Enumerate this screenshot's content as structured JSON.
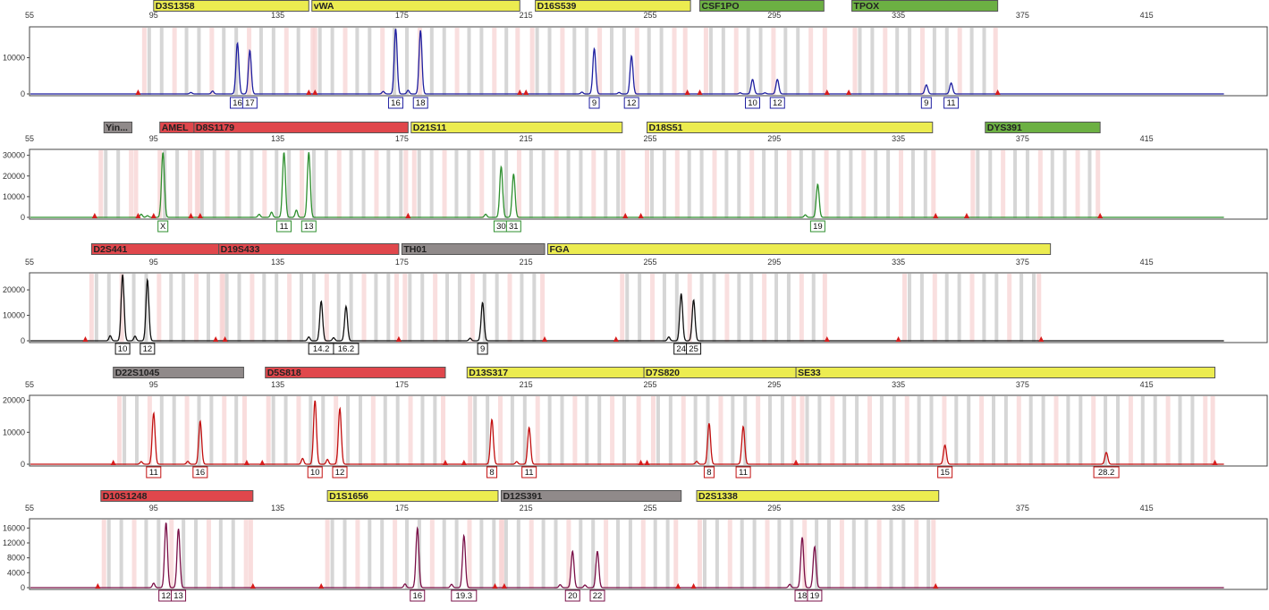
{
  "colors": {
    "yellow_marker": "#ecec50",
    "green_marker": "#6cb043",
    "red_marker": "#e0474c",
    "gray_marker": "#908a8a",
    "bin_gray": "#c8c8c8",
    "bin_pink": "#f7d4d4",
    "blue_dye": "#1f1fa0",
    "green_dye": "#2f8f2f",
    "black_dye": "#111111",
    "red_dye": "#c21010",
    "purple_dye": "#7a1048",
    "stutter_marker": "#d81c1c"
  },
  "chart_data": [
    {
      "type": "line",
      "panel": "blue",
      "x_ticks": [
        55,
        95,
        135,
        175,
        215,
        255,
        295,
        335,
        375,
        415
      ],
      "xlim": [
        55,
        440
      ],
      "ylim": [
        0,
        18000
      ],
      "y_ticks": [
        0,
        10000
      ],
      "y_tick_labels": [
        "0",
        "10000"
      ],
      "line_color": "blue_dye",
      "markers": [
        {
          "name": "D3S1358",
          "start": 95,
          "end": 145,
          "color": "yellow_marker"
        },
        {
          "name": "vWA",
          "start": 146,
          "end": 213,
          "color": "yellow_marker"
        },
        {
          "name": "D16S539",
          "start": 218,
          "end": 268,
          "color": "yellow_marker"
        },
        {
          "name": "CSF1PO",
          "start": 271,
          "end": 311,
          "color": "green_marker"
        },
        {
          "name": "TPOX",
          "start": 320,
          "end": 367,
          "color": "green_marker"
        }
      ],
      "bins": [
        [
          93,
          145
        ],
        [
          148,
          211
        ],
        [
          218,
          265
        ],
        [
          274,
          310
        ],
        [
          322,
          365
        ]
      ],
      "peaks": [
        {
          "x": 122,
          "height": 14000,
          "allele": "16"
        },
        {
          "x": 126,
          "height": 12000,
          "allele": "17"
        },
        {
          "x": 173,
          "height": 18000,
          "allele": "16"
        },
        {
          "x": 181,
          "height": 17500,
          "allele": "18"
        },
        {
          "x": 237,
          "height": 12500,
          "allele": "9"
        },
        {
          "x": 249,
          "height": 10500,
          "allele": "12"
        },
        {
          "x": 288,
          "height": 4000,
          "allele": "10"
        },
        {
          "x": 296,
          "height": 4000,
          "allele": "12"
        },
        {
          "x": 344,
          "height": 2500,
          "allele": "9"
        },
        {
          "x": 352,
          "height": 3000,
          "allele": "11"
        }
      ],
      "stutter": [
        {
          "x": 107,
          "height": 400
        },
        {
          "x": 114,
          "height": 800
        },
        {
          "x": 169,
          "height": 700
        },
        {
          "x": 177,
          "height": 1000
        },
        {
          "x": 233,
          "height": 500
        },
        {
          "x": 245,
          "height": 400
        },
        {
          "x": 284,
          "height": 300
        },
        {
          "x": 292,
          "height": 300
        }
      ]
    },
    {
      "type": "line",
      "panel": "green",
      "x_ticks": [
        55,
        95,
        135,
        175,
        215,
        255,
        295,
        335,
        375,
        415
      ],
      "xlim": [
        55,
        440
      ],
      "ylim": [
        0,
        32000
      ],
      "y_ticks": [
        0,
        10000,
        20000,
        30000
      ],
      "y_tick_labels": [
        "0",
        "10000",
        "20000",
        "30000"
      ],
      "line_color": "green_dye",
      "markers": [
        {
          "name": "Yin...",
          "start": 79,
          "end": 88,
          "color": "gray_marker"
        },
        {
          "name": "AMEL",
          "start": 97,
          "end": 108,
          "color": "red_marker"
        },
        {
          "name": "D8S1179",
          "start": 108,
          "end": 177,
          "color": "red_marker"
        },
        {
          "name": "D21S11",
          "start": 178,
          "end": 246,
          "color": "yellow_marker"
        },
        {
          "name": "D18S51",
          "start": 254,
          "end": 346,
          "color": "yellow_marker"
        },
        {
          "name": "DYS391",
          "start": 363,
          "end": 400,
          "color": "green_marker"
        }
      ],
      "bins": [
        [
          79,
          88
        ],
        [
          98,
          108
        ],
        [
          110,
          175
        ],
        [
          180,
          245
        ],
        [
          255,
          345
        ],
        [
          360,
          398
        ]
      ],
      "peaks": [
        {
          "x": 98,
          "height": 31500,
          "allele": "X"
        },
        {
          "x": 137,
          "height": 31500,
          "allele": "11"
        },
        {
          "x": 145,
          "height": 31500,
          "allele": "13"
        },
        {
          "x": 207,
          "height": 24500,
          "allele": "30"
        },
        {
          "x": 211,
          "height": 21000,
          "allele": "31"
        },
        {
          "x": 309,
          "height": 16000,
          "allele": "19"
        }
      ],
      "stutter": [
        {
          "x": 91,
          "height": 1500
        },
        {
          "x": 93,
          "height": 800
        },
        {
          "x": 129,
          "height": 1500
        },
        {
          "x": 133,
          "height": 2500
        },
        {
          "x": 141,
          "height": 3500
        },
        {
          "x": 202,
          "height": 1500
        },
        {
          "x": 305,
          "height": 1200
        }
      ]
    },
    {
      "type": "line",
      "panel": "yellow",
      "x_ticks": [
        55,
        95,
        135,
        175,
        215,
        255,
        295,
        335,
        375,
        415
      ],
      "xlim": [
        55,
        440
      ],
      "ylim": [
        0,
        26000
      ],
      "y_ticks": [
        0,
        10000,
        20000
      ],
      "y_tick_labels": [
        "0",
        "10000",
        "20000"
      ],
      "line_color": "black_dye",
      "markers": [
        {
          "name": "D2S441",
          "start": 75,
          "end": 116,
          "color": "red_marker"
        },
        {
          "name": "D19S433",
          "start": 116,
          "end": 174,
          "color": "red_marker"
        },
        {
          "name": "TH01",
          "start": 175,
          "end": 221,
          "color": "gray_marker"
        },
        {
          "name": "FGA",
          "start": 222,
          "end": 384,
          "color": "yellow_marker"
        }
      ],
      "bins": [
        [
          76,
          116
        ],
        [
          118,
          172
        ],
        [
          177,
          219
        ],
        [
          247,
          310
        ],
        [
          338,
          379
        ]
      ],
      "peaks": [
        {
          "x": 85,
          "height": 26000,
          "allele": "10"
        },
        {
          "x": 93,
          "height": 24000,
          "allele": "12"
        },
        {
          "x": 149,
          "height": 15500,
          "allele": "14.2"
        },
        {
          "x": 157,
          "height": 13500,
          "allele": "16.2"
        },
        {
          "x": 201,
          "height": 15000,
          "allele": "9"
        },
        {
          "x": 265,
          "height": 18500,
          "allele": "24"
        },
        {
          "x": 269,
          "height": 16000,
          "allele": "25"
        }
      ],
      "stutter": [
        {
          "x": 81,
          "height": 2000
        },
        {
          "x": 89,
          "height": 1800
        },
        {
          "x": 145,
          "height": 1500
        },
        {
          "x": 153,
          "height": 1200
        },
        {
          "x": 197,
          "height": 1000
        },
        {
          "x": 261,
          "height": 1500
        }
      ]
    },
    {
      "type": "line",
      "panel": "red",
      "x_ticks": [
        55,
        95,
        135,
        175,
        215,
        255,
        295,
        335,
        375,
        415
      ],
      "xlim": [
        55,
        440
      ],
      "ylim": [
        0,
        21000
      ],
      "y_ticks": [
        0,
        10000,
        20000
      ],
      "y_tick_labels": [
        "0",
        "10000",
        "20000"
      ],
      "line_color": "red_dye",
      "markers": [
        {
          "name": "D22S1045",
          "start": 82,
          "end": 124,
          "color": "gray_marker"
        },
        {
          "name": "D5S818",
          "start": 131,
          "end": 189,
          "color": "red_marker"
        },
        {
          "name": "D13S317",
          "start": 196,
          "end": 253,
          "color": "yellow_marker"
        },
        {
          "name": "D7S820",
          "start": 253,
          "end": 302,
          "color": "yellow_marker"
        },
        {
          "name": "SE33",
          "start": 302,
          "end": 437,
          "color": "yellow_marker"
        }
      ],
      "bins": [
        [
          85,
          123
        ],
        [
          133,
          187
        ],
        [
          198,
          250
        ],
        [
          257,
          300
        ],
        [
          305,
          435
        ]
      ],
      "peaks": [
        {
          "x": 95,
          "height": 16000,
          "allele": "11"
        },
        {
          "x": 110,
          "height": 13500,
          "allele": "16"
        },
        {
          "x": 147,
          "height": 20000,
          "allele": "10"
        },
        {
          "x": 155,
          "height": 17500,
          "allele": "12"
        },
        {
          "x": 204,
          "height": 14000,
          "allele": "8"
        },
        {
          "x": 216,
          "height": 11500,
          "allele": "11"
        },
        {
          "x": 274,
          "height": 12800,
          "allele": "8"
        },
        {
          "x": 285,
          "height": 11800,
          "allele": "11"
        },
        {
          "x": 350,
          "height": 6000,
          "allele": "15"
        },
        {
          "x": 402,
          "height": 3700,
          "allele": "28.2"
        }
      ],
      "stutter": [
        {
          "x": 91,
          "height": 800
        },
        {
          "x": 106,
          "height": 900
        },
        {
          "x": 143,
          "height": 1800
        },
        {
          "x": 151,
          "height": 1500
        },
        {
          "x": 212,
          "height": 800
        },
        {
          "x": 270,
          "height": 900
        }
      ]
    },
    {
      "type": "line",
      "panel": "purple",
      "x_ticks": [
        55,
        95,
        135,
        175,
        215,
        255,
        295,
        335,
        375,
        415
      ],
      "xlim": [
        55,
        440
      ],
      "ylim": [
        0,
        18000
      ],
      "y_ticks": [
        0,
        4000,
        8000,
        12000,
        16000
      ],
      "y_tick_labels": [
        "0",
        "4000",
        "8000",
        "12000",
        "16000"
      ],
      "line_color": "purple_dye",
      "markers": [
        {
          "name": "D10S1248",
          "start": 78,
          "end": 127,
          "color": "red_marker"
        },
        {
          "name": "D1S1656",
          "start": 151,
          "end": 206,
          "color": "yellow_marker"
        },
        {
          "name": "D12S391",
          "start": 207,
          "end": 265,
          "color": "gray_marker"
        },
        {
          "name": "D2S1338",
          "start": 270,
          "end": 348,
          "color": "yellow_marker"
        }
      ],
      "bins": [
        [
          80,
          125
        ],
        [
          152,
          206
        ],
        [
          208,
          262
        ],
        [
          272,
          345
        ]
      ],
      "peaks": [
        {
          "x": 99,
          "height": 17500,
          "allele": "12"
        },
        {
          "x": 103,
          "height": 15800,
          "allele": "13"
        },
        {
          "x": 180,
          "height": 16000,
          "allele": "16"
        },
        {
          "x": 195,
          "height": 14000,
          "allele": "19.3"
        },
        {
          "x": 230,
          "height": 9800,
          "allele": "20"
        },
        {
          "x": 238,
          "height": 9800,
          "allele": "22"
        },
        {
          "x": 304,
          "height": 13500,
          "allele": "18"
        },
        {
          "x": 308,
          "height": 11000,
          "allele": "19"
        }
      ],
      "stutter": [
        {
          "x": 95,
          "height": 1200
        },
        {
          "x": 176,
          "height": 1000
        },
        {
          "x": 191,
          "height": 900
        },
        {
          "x": 226,
          "height": 800
        },
        {
          "x": 234,
          "height": 700
        },
        {
          "x": 300,
          "height": 900
        }
      ]
    }
  ]
}
